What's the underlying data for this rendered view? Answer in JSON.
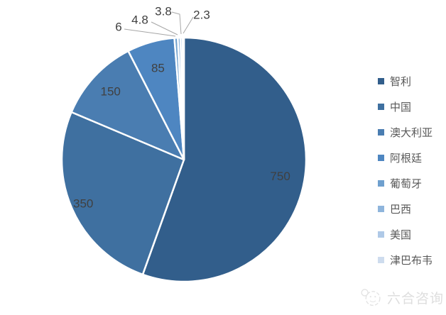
{
  "chart_data": {
    "type": "pie",
    "categories": [
      "智利",
      "中国",
      "澳大利亚",
      "阿根廷",
      "葡萄牙",
      "巴西",
      "美国",
      "津巴布韦"
    ],
    "values": [
      750,
      350,
      150,
      85,
      6,
      4.8,
      3.8,
      2.3
    ],
    "value_labels": [
      "750",
      "350",
      "150",
      "85",
      "6",
      "4.8",
      "3.8",
      "2.3"
    ],
    "colors": [
      "#325E8B",
      "#3F70A0",
      "#4A7DB1",
      "#4E86C1",
      "#6FA0CE",
      "#8FB5DC",
      "#AFC9E7",
      "#CEDCEE"
    ],
    "title": "",
    "legend_position": "right",
    "start_angle_deg": 0,
    "direction": "clockwise",
    "slice_border_color": "#FFFFFF",
    "data_label_color": "#404040",
    "leader_line_color": "#A6A6A6",
    "legend_text_color": "#595959"
  },
  "footer": {
    "brand": "六合咨询"
  }
}
